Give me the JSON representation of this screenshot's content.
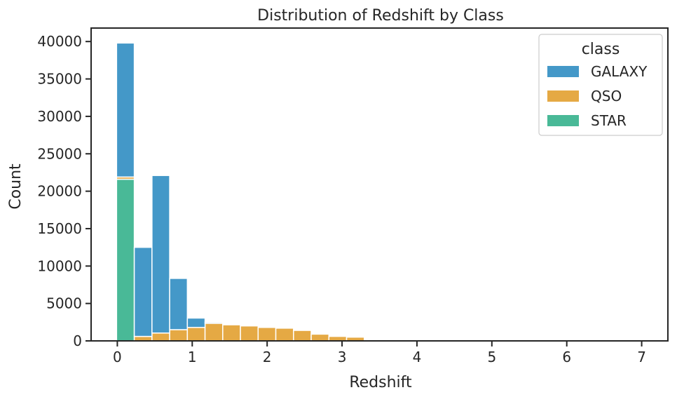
{
  "chart_data": {
    "type": "bar",
    "stacked": true,
    "title": "Distribution of Redshift by Class",
    "xlabel": "Redshift",
    "ylabel": "Count",
    "xlim": [
      -0.35,
      7.35
    ],
    "ylim": [
      0,
      41800
    ],
    "xticks": [
      0,
      1,
      2,
      3,
      4,
      5,
      6,
      7
    ],
    "yticks": [
      0,
      5000,
      10000,
      15000,
      20000,
      25000,
      30000,
      35000,
      40000
    ],
    "bin_edges": [
      -0.0099,
      0.2263,
      0.4625,
      0.6987,
      0.9349,
      1.1711,
      1.4073,
      1.6435,
      1.8797,
      2.1159,
      2.3521,
      2.5883,
      2.8245,
      3.0607,
      3.2969,
      3.5331,
      3.7693,
      4.0055,
      4.2417,
      4.4779,
      4.7141,
      4.9503,
      5.1865,
      5.4227,
      5.6589,
      5.8951,
      6.1313,
      6.3675,
      6.6037,
      6.8399,
      7.0761
    ],
    "legend": {
      "title": "class",
      "position": "upper-right"
    },
    "grid": false,
    "series": [
      {
        "name": "STAR",
        "color": "#49b997",
        "values": [
          21600,
          0,
          0,
          0,
          0,
          0,
          0,
          0,
          0,
          0,
          0,
          0,
          0,
          0,
          0,
          0,
          0,
          0,
          0,
          0,
          0,
          0,
          0,
          0,
          0,
          0,
          0,
          0,
          0,
          0
        ]
      },
      {
        "name": "QSO",
        "color": "#e5a944",
        "values": [
          300,
          600,
          1050,
          1500,
          1800,
          2350,
          2150,
          2000,
          1800,
          1700,
          1400,
          900,
          600,
          500,
          150,
          80,
          50,
          30,
          20,
          10,
          8,
          5,
          4,
          3,
          2,
          2,
          1,
          1,
          1,
          1
        ]
      },
      {
        "name": "GALAXY",
        "color": "#4498c8",
        "values": [
          17900,
          11900,
          21050,
          6850,
          1250,
          150,
          0,
          0,
          0,
          0,
          0,
          0,
          0,
          0,
          0,
          0,
          0,
          0,
          0,
          0,
          0,
          0,
          0,
          0,
          0,
          0,
          0,
          0,
          0,
          0
        ]
      }
    ]
  }
}
